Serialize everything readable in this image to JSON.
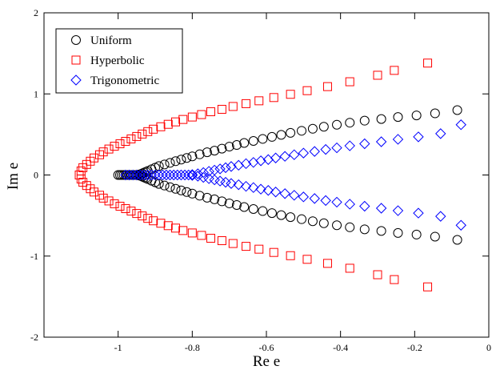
{
  "chart_data": {
    "type": "scatter",
    "xlabel": "Re e",
    "ylabel": "Im e",
    "xlim": [
      -1.2,
      0
    ],
    "ylim": [
      -2,
      2
    ],
    "xticks": [
      {
        "value": -1,
        "label": "-1"
      },
      {
        "value": -0.8,
        "label": "-0.8"
      },
      {
        "value": -0.6,
        "label": "-0.6"
      },
      {
        "value": -0.4,
        "label": "-0.4"
      },
      {
        "value": -0.2,
        "label": "-0.2"
      },
      {
        "value": 0,
        "label": "0"
      }
    ],
    "yticks": [
      {
        "value": -2,
        "label": "-2"
      },
      {
        "value": -1,
        "label": "-1"
      },
      {
        "value": 0,
        "label": "0"
      },
      {
        "value": 1,
        "label": "1"
      },
      {
        "value": 2,
        "label": "2"
      }
    ],
    "grid": false,
    "legend_position": "top-left",
    "series": [
      {
        "name": "Uniform",
        "marker": "circle",
        "color": "#000000",
        "x": [
          -1.0,
          -0.995,
          -0.99,
          -0.985,
          -0.98,
          -0.975,
          -0.97,
          -0.965,
          -0.96,
          -0.955,
          -0.95,
          -0.945,
          -0.94,
          -0.935,
          -0.93,
          -0.925,
          -0.92,
          -0.91,
          -0.9,
          -0.89,
          -0.875,
          -0.86,
          -0.845,
          -0.83,
          -0.815,
          -0.8,
          -0.78,
          -0.76,
          -0.74,
          -0.72,
          -0.7,
          -0.68,
          -0.66,
          -0.635,
          -0.61,
          -0.585,
          -0.56,
          -0.535,
          -0.505,
          -0.475,
          -0.445,
          -0.41,
          -0.375,
          -0.335,
          -0.29,
          -0.245,
          -0.195,
          -0.145,
          -0.085
        ],
        "y": [
          0.0,
          0.0,
          0.0,
          0.0,
          0.0,
          0.0,
          0.0,
          0.0,
          0.0,
          0.0,
          0.0,
          0.005,
          0.01,
          0.02,
          0.03,
          0.04,
          0.05,
          0.07,
          0.09,
          0.11,
          0.13,
          0.15,
          0.17,
          0.19,
          0.21,
          0.23,
          0.255,
          0.28,
          0.3,
          0.325,
          0.35,
          0.37,
          0.395,
          0.42,
          0.445,
          0.47,
          0.495,
          0.52,
          0.545,
          0.57,
          0.595,
          0.62,
          0.645,
          0.67,
          0.69,
          0.715,
          0.735,
          0.76,
          0.8
        ]
      },
      {
        "name": "Hyperbolic",
        "marker": "square",
        "color": "#ff0000",
        "x": [
          -1.105,
          -1.1,
          -1.095,
          -1.085,
          -1.075,
          -1.065,
          -1.05,
          -1.04,
          -1.025,
          -1.01,
          -0.995,
          -0.98,
          -0.965,
          -0.95,
          -0.935,
          -0.92,
          -0.905,
          -0.885,
          -0.865,
          -0.845,
          -0.825,
          -0.8,
          -0.775,
          -0.75,
          -0.72,
          -0.69,
          -0.655,
          -0.62,
          -0.58,
          -0.535,
          -0.49,
          -0.435,
          -0.375,
          -0.3,
          -0.255,
          -0.165
        ],
        "y": [
          0.0,
          0.05,
          0.09,
          0.13,
          0.17,
          0.21,
          0.25,
          0.285,
          0.32,
          0.355,
          0.385,
          0.415,
          0.445,
          0.475,
          0.505,
          0.535,
          0.565,
          0.595,
          0.625,
          0.655,
          0.685,
          0.715,
          0.745,
          0.78,
          0.81,
          0.845,
          0.88,
          0.915,
          0.955,
          0.995,
          1.04,
          1.09,
          1.15,
          1.23,
          1.29,
          1.38
        ]
      },
      {
        "name": "Trigonometric",
        "marker": "diamond",
        "color": "#0000ff",
        "x": [
          -0.98,
          -0.97,
          -0.96,
          -0.95,
          -0.94,
          -0.93,
          -0.92,
          -0.91,
          -0.9,
          -0.89,
          -0.88,
          -0.87,
          -0.86,
          -0.85,
          -0.84,
          -0.83,
          -0.82,
          -0.81,
          -0.8,
          -0.785,
          -0.77,
          -0.755,
          -0.74,
          -0.725,
          -0.71,
          -0.695,
          -0.675,
          -0.655,
          -0.635,
          -0.615,
          -0.595,
          -0.575,
          -0.55,
          -0.525,
          -0.5,
          -0.47,
          -0.44,
          -0.41,
          -0.375,
          -0.335,
          -0.29,
          -0.245,
          -0.19,
          -0.13,
          -0.075
        ],
        "y": [
          0.0,
          0.0,
          0.0,
          0.0,
          0.0,
          0.0,
          0.0,
          0.0,
          0.0,
          0.0,
          0.0,
          0.0,
          0.0,
          0.0,
          0.0,
          0.0,
          0.0,
          0.0,
          0.005,
          0.015,
          0.03,
          0.045,
          0.06,
          0.075,
          0.09,
          0.105,
          0.12,
          0.14,
          0.155,
          0.175,
          0.19,
          0.21,
          0.23,
          0.25,
          0.27,
          0.29,
          0.315,
          0.335,
          0.36,
          0.385,
          0.41,
          0.44,
          0.47,
          0.51,
          0.62
        ]
      }
    ]
  }
}
